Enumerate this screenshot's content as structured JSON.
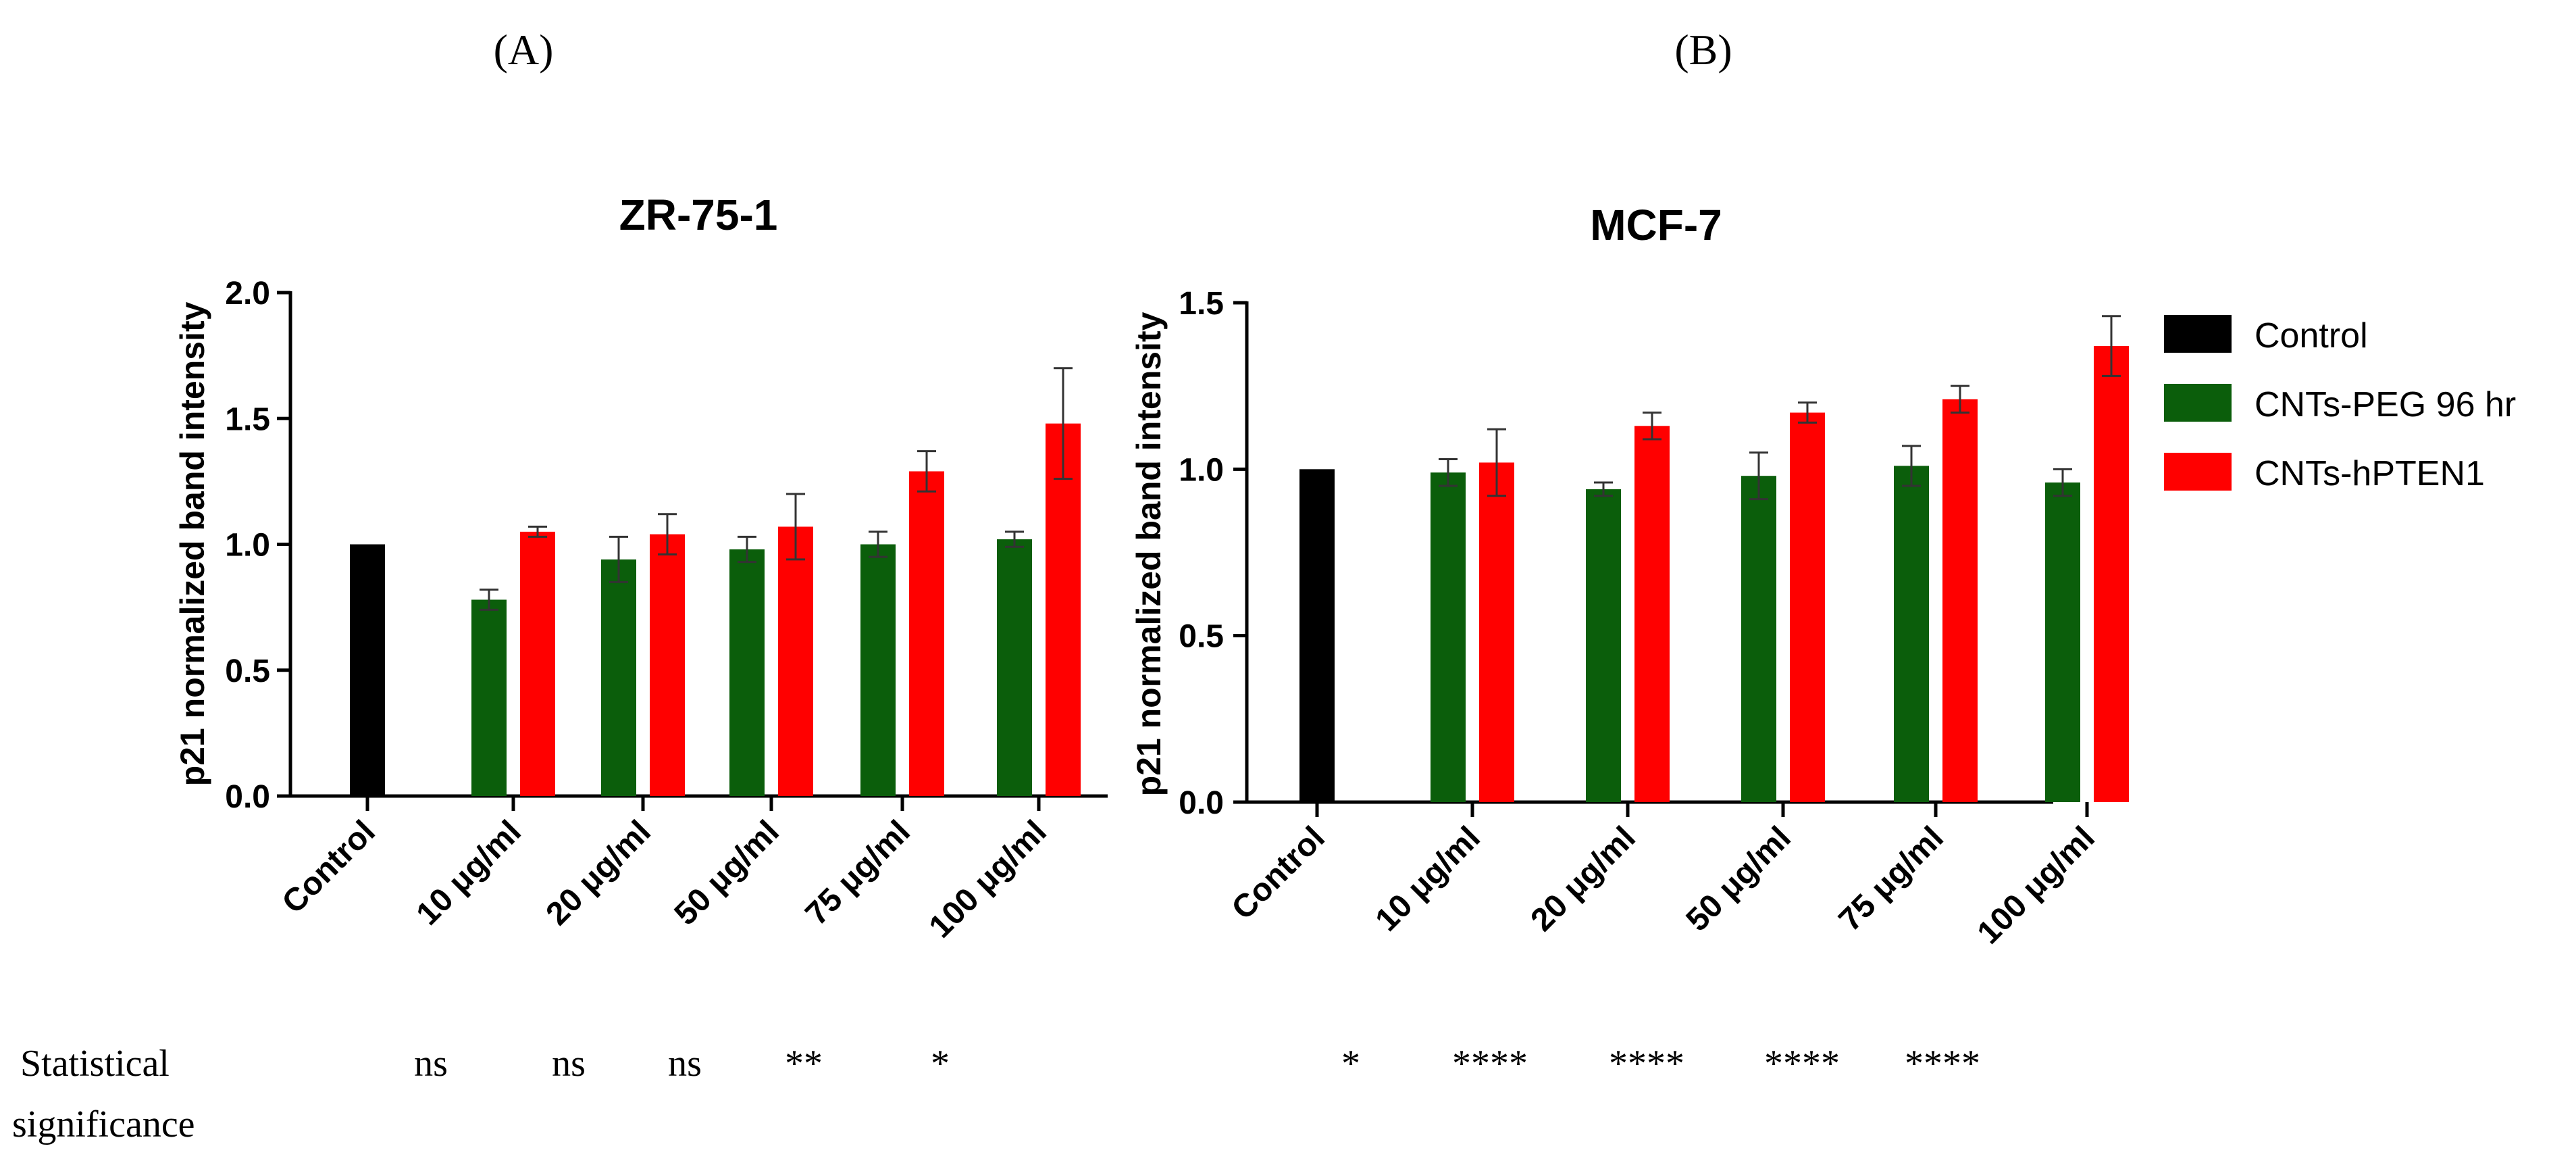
{
  "panel_labels": [
    "(A)",
    "(B)"
  ],
  "legend": {
    "entries": [
      {
        "name": "Control",
        "color": "#000000"
      },
      {
        "name": "CNTs-PEG 96 hr",
        "color": "#0b5e0b"
      },
      {
        "name": "CNTs-hPTEN1",
        "color": "#ff0000"
      }
    ]
  },
  "significance": {
    "label_line1": "Statistical",
    "label_line2": "significance",
    "panel_a": [
      "ns",
      "ns",
      "ns",
      "**",
      "*"
    ],
    "panel_b": [
      "*",
      "****",
      "****",
      "****",
      "****"
    ]
  },
  "chart_data": [
    {
      "type": "bar",
      "title": "ZR-75-1",
      "xlabel": "",
      "ylabel": "p21 normalized band intensity",
      "ylim": [
        0,
        2.0
      ],
      "yticks": [
        0.0,
        0.5,
        1.0,
        1.5,
        2.0
      ],
      "categories": [
        "Control",
        "10 μg/ml",
        "20 μg/ml",
        "50 μg/ml",
        "75 μg/ml",
        "100 μg/ml"
      ],
      "series": [
        {
          "name": "Control",
          "values": [
            1.0,
            null,
            null,
            null,
            null,
            null
          ],
          "errors": [
            0,
            null,
            null,
            null,
            null,
            null
          ]
        },
        {
          "name": "CNTs-PEG 96 hr",
          "values": [
            null,
            0.78,
            0.94,
            0.98,
            1.0,
            1.02
          ],
          "errors": [
            null,
            0.04,
            0.09,
            0.05,
            0.05,
            0.03
          ]
        },
        {
          "name": "CNTs-hPTEN1",
          "values": [
            null,
            1.05,
            1.04,
            1.07,
            1.29,
            1.48
          ],
          "errors": [
            null,
            0.02,
            0.08,
            0.13,
            0.08,
            0.22
          ]
        }
      ]
    },
    {
      "type": "bar",
      "title": "MCF-7",
      "xlabel": "",
      "ylabel": "p21 normalized band intensity",
      "ylim": [
        0,
        1.5
      ],
      "yticks": [
        0.0,
        0.5,
        1.0,
        1.5
      ],
      "categories": [
        "Control",
        "10 μg/ml",
        "20 μg/ml",
        "50 μg/ml",
        "75 μg/ml",
        "100 μg/ml"
      ],
      "series": [
        {
          "name": "Control",
          "values": [
            1.0,
            null,
            null,
            null,
            null,
            null
          ],
          "errors": [
            0,
            null,
            null,
            null,
            null,
            null
          ]
        },
        {
          "name": "CNTs-PEG 96 hr",
          "values": [
            null,
            0.99,
            0.94,
            0.98,
            1.01,
            0.96
          ],
          "errors": [
            null,
            0.04,
            0.02,
            0.07,
            0.06,
            0.04
          ]
        },
        {
          "name": "CNTs-hPTEN1",
          "values": [
            null,
            1.02,
            1.13,
            1.17,
            1.21,
            1.37
          ],
          "errors": [
            null,
            0.1,
            0.04,
            0.03,
            0.04,
            0.09
          ]
        }
      ]
    }
  ]
}
